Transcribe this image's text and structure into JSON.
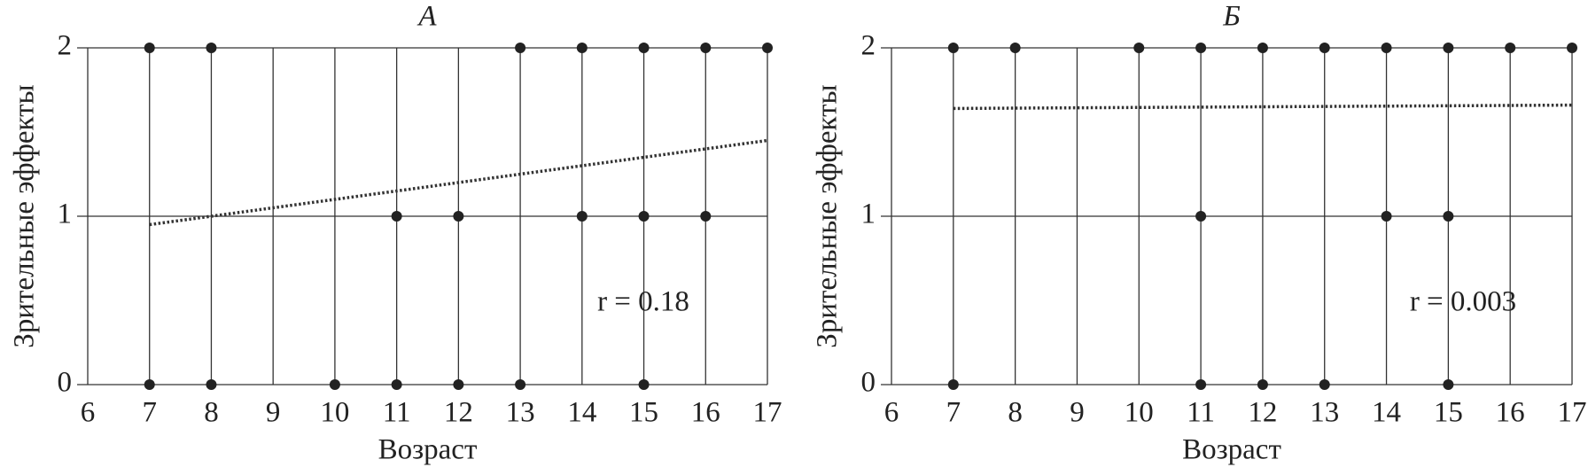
{
  "chart_data": [
    {
      "type": "scatter",
      "title": "А",
      "xlabel": "Возраст",
      "ylabel": "Зрительные эффекты",
      "xlim": [
        6,
        17
      ],
      "xticks": [
        6,
        7,
        8,
        9,
        10,
        11,
        12,
        13,
        14,
        15,
        16,
        17
      ],
      "ylim": [
        0,
        2
      ],
      "yticks": [
        0,
        1,
        2
      ],
      "grid": true,
      "color": "#222",
      "x": [
        7,
        8,
        13,
        14,
        15,
        16,
        17,
        11,
        12,
        14,
        15,
        16,
        7,
        8,
        10,
        11,
        12,
        13,
        15
      ],
      "values": [
        2,
        2,
        2,
        2,
        2,
        2,
        2,
        1,
        1,
        1,
        1,
        1,
        0,
        0,
        0,
        0,
        0,
        0,
        0
      ],
      "trend": {
        "x": [
          7,
          17
        ],
        "values": [
          0.95,
          1.45
        ]
      },
      "annotation": "r = 0.18"
    },
    {
      "type": "scatter",
      "title": "Б",
      "xlabel": "Возраст",
      "ylabel": "Зрительные эффекты",
      "xlim": [
        6,
        17
      ],
      "xticks": [
        6,
        7,
        8,
        9,
        10,
        11,
        12,
        13,
        14,
        15,
        16,
        17
      ],
      "ylim": [
        0,
        2
      ],
      "yticks": [
        0,
        1,
        2
      ],
      "grid": true,
      "color": "#222",
      "x": [
        7,
        8,
        10,
        11,
        12,
        13,
        14,
        15,
        16,
        17,
        11,
        14,
        15,
        7,
        11,
        12,
        13,
        15
      ],
      "values": [
        2,
        2,
        2,
        2,
        2,
        2,
        2,
        2,
        2,
        2,
        1,
        1,
        1,
        0,
        0,
        0,
        0,
        0
      ],
      "trend": {
        "x": [
          7,
          17
        ],
        "values": [
          1.64,
          1.66
        ]
      },
      "annotation": "r = 0.003"
    }
  ]
}
